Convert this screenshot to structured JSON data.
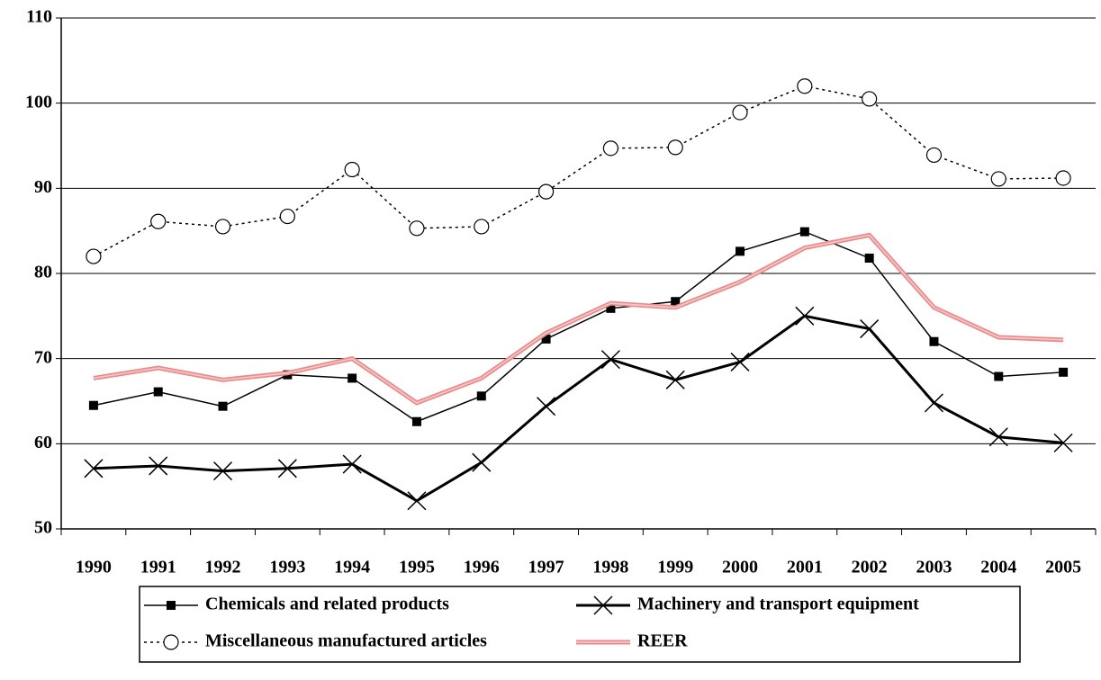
{
  "chart_data": {
    "type": "line",
    "categories": [
      "1990",
      "1991",
      "1992",
      "1993",
      "1994",
      "1995",
      "1996",
      "1997",
      "1998",
      "1999",
      "2000",
      "2001",
      "2002",
      "2003",
      "2004",
      "2005"
    ],
    "series": [
      {
        "name": "Chemicals and related products",
        "color": "#000000",
        "marker": "square",
        "line_style": "solid",
        "linewidth": 1.5,
        "values": [
          64.5,
          66.1,
          64.4,
          68.1,
          67.7,
          62.6,
          65.6,
          72.3,
          75.9,
          76.7,
          82.6,
          84.9,
          81.8,
          72.0,
          67.9,
          68.4
        ]
      },
      {
        "name": "Machinery and transport equipment",
        "color": "#000000",
        "marker": "x",
        "line_style": "solid",
        "linewidth": 3,
        "values": [
          57.1,
          57.4,
          56.8,
          57.1,
          57.6,
          53.3,
          57.8,
          64.4,
          69.9,
          67.5,
          69.6,
          75.0,
          73.5,
          64.8,
          60.8,
          60.1
        ]
      },
      {
        "name": "Miscellaneous manufactured articles",
        "color": "#000000",
        "marker": "circle",
        "line_style": "dotted",
        "linewidth": 1.5,
        "values": [
          82.0,
          86.1,
          85.5,
          86.7,
          92.2,
          85.3,
          85.5,
          89.6,
          94.7,
          94.8,
          98.9,
          102.0,
          100.5,
          93.9,
          91.1,
          91.2
        ]
      },
      {
        "name": "REER",
        "color": "#e98a8a",
        "marker": "none",
        "line_style": "double",
        "linewidth": 5,
        "values": [
          67.7,
          68.9,
          67.5,
          68.3,
          70.0,
          64.8,
          67.7,
          73.0,
          76.5,
          76.0,
          79.0,
          83.0,
          84.5,
          76.0,
          72.5,
          72.2
        ]
      }
    ],
    "ylim": [
      50,
      110
    ],
    "yticks": [
      50,
      60,
      70,
      80,
      90,
      100,
      110
    ],
    "grid": true,
    "legend": "bottom"
  }
}
